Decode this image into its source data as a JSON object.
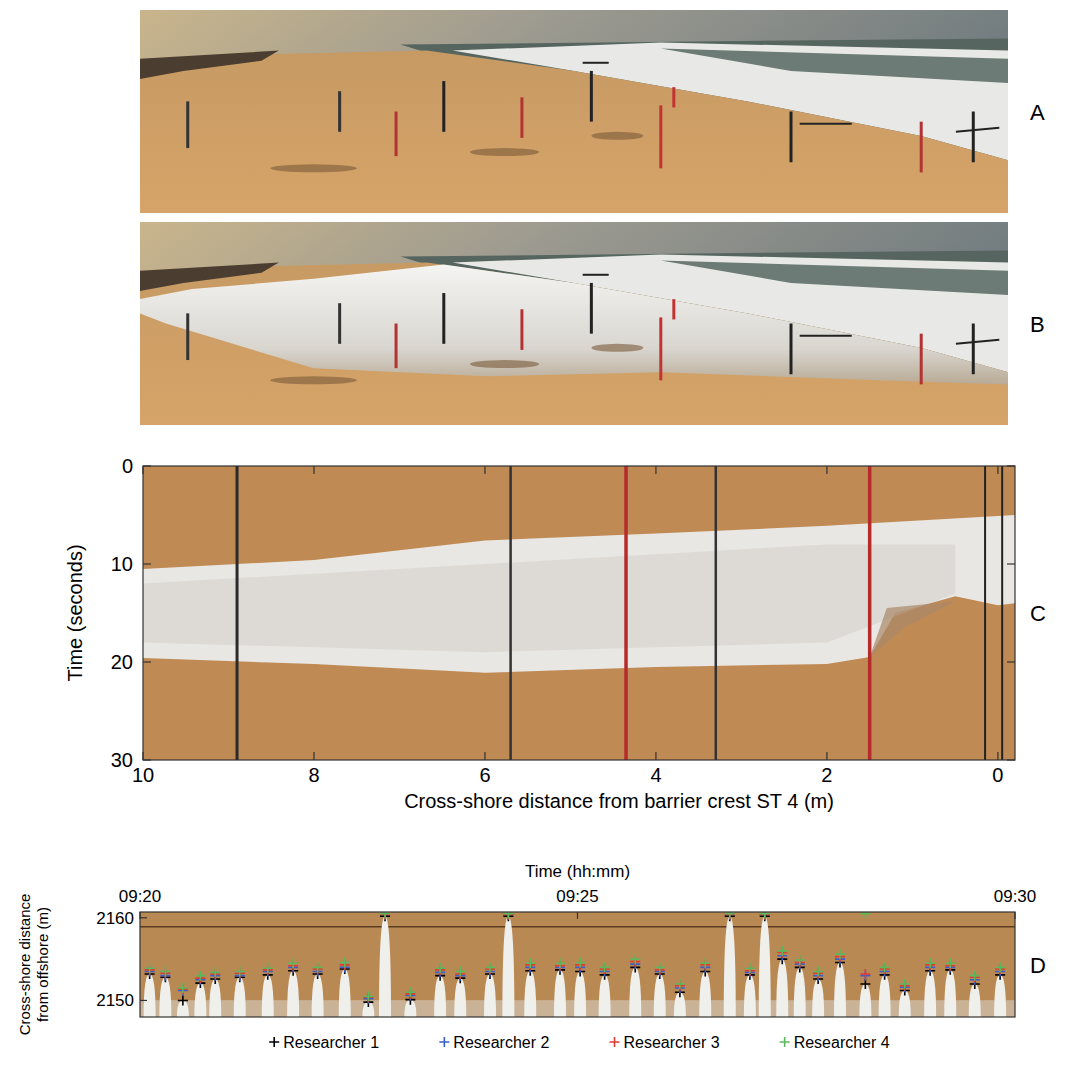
{
  "photos": [
    {
      "label": "A"
    },
    {
      "label": "B"
    }
  ],
  "chart_data": [
    {
      "type": "image",
      "panel_label": "C",
      "x_label": "Cross-shore distance from barrier crest ST 4 (m)",
      "y_label": "Time (seconds)",
      "xlim": [
        10,
        -0.2
      ],
      "xticks": [
        10,
        8,
        6,
        4,
        2,
        0
      ],
      "ylim": [
        30,
        0
      ],
      "yticks": [
        0,
        10,
        20,
        30
      ]
    },
    {
      "type": "scatter",
      "panel_label": "D",
      "x_label": "Time (hh:mm)",
      "y_label": "Cross-shore distance from offshore (m)",
      "marker": "plus",
      "legend": "bottom",
      "xlim": [
        560,
        570
      ],
      "xticks": [
        {
          "value": 560,
          "label": "09:20"
        },
        {
          "value": 565,
          "label": "09:25"
        },
        {
          "value": 570,
          "label": "09:30"
        }
      ],
      "ylim": [
        2148,
        2160.7
      ],
      "yticks": [
        2150,
        2160
      ],
      "x": [
        560.11,
        560.29,
        560.49,
        560.69,
        560.86,
        561.14,
        561.46,
        561.75,
        562.03,
        562.34,
        562.61,
        562.8,
        563.09,
        563.43,
        563.66,
        564.0,
        564.21,
        564.46,
        564.8,
        565.03,
        565.31,
        565.66,
        565.94,
        566.17,
        566.46,
        566.74,
        566.97,
        567.14,
        567.34,
        567.54,
        567.75,
        568.0,
        568.29,
        568.51,
        568.74,
        569.03,
        569.26,
        569.54,
        569.83
      ],
      "series": [
        {
          "name": "Researcher 1",
          "color": "#000000",
          "values": [
            2153.2,
            2152.8,
            2150.0,
            2152.1,
            2152.6,
            2152.8,
            2153.1,
            2153.6,
            2153.2,
            2153.8,
            2149.8,
            2160.2,
            2150.1,
            2153.0,
            2152.7,
            2153.2,
            2160.2,
            2153.6,
            2153.7,
            2153.5,
            2153.1,
            2154.0,
            2153.2,
            2151.0,
            2153.5,
            2160.2,
            2153.1,
            2160.2,
            2155.0,
            2154.0,
            2152.6,
            2154.6,
            2152.0,
            2153.1,
            2151.2,
            2153.6,
            2153.7,
            2152.0,
            2153.1
          ]
        },
        {
          "name": "Researcher 2",
          "color": "#3a5fcd",
          "values": [
            2153.5,
            2153.0,
            2151.2,
            2152.5,
            2153.0,
            2153.0,
            2153.5,
            2154.0,
            2153.5,
            2154.0,
            2150.2,
            2160.4,
            2150.6,
            2153.4,
            2153.0,
            2153.5,
            2160.4,
            2154.0,
            2154.0,
            2154.0,
            2153.5,
            2154.4,
            2153.5,
            2151.5,
            2154.0,
            2160.4,
            2153.4,
            2160.4,
            2155.4,
            2154.4,
            2153.0,
            2155.0,
            2153.0,
            2153.5,
            2151.6,
            2154.0,
            2154.0,
            2152.5,
            2153.5
          ]
        },
        {
          "name": "Researcher 3",
          "color": "#e03c31",
          "values": [
            2153.7,
            2153.3,
            2151.4,
            2152.7,
            2153.2,
            2153.3,
            2153.7,
            2154.2,
            2153.8,
            2154.3,
            2150.4,
            2160.4,
            2150.8,
            2153.7,
            2153.2,
            2153.8,
            2160.4,
            2154.3,
            2154.2,
            2154.3,
            2153.8,
            2154.7,
            2153.7,
            2151.8,
            2154.3,
            2160.4,
            2153.6,
            2160.4,
            2155.8,
            2154.6,
            2153.3,
            2155.3,
            2153.2,
            2153.8,
            2151.8,
            2154.3,
            2154.2,
            2152.8,
            2153.8
          ]
        },
        {
          "name": "Researcher 4",
          "color": "#5cb85c",
          "values": [
            2153.9,
            2153.5,
            2151.5,
            2153.0,
            2153.4,
            2153.5,
            2153.9,
            2154.5,
            2154.0,
            2154.6,
            2150.5,
            2160.5,
            2151.0,
            2153.9,
            2153.5,
            2154.0,
            2160.5,
            2154.5,
            2154.5,
            2154.6,
            2154.0,
            2155.0,
            2154.0,
            2152.0,
            2154.5,
            2160.5,
            2153.9,
            2160.5,
            2156.0,
            2154.9,
            2153.5,
            2155.6,
            2160.5,
            2154.0,
            2152.0,
            2154.5,
            2154.5,
            2153.0,
            2154.0
          ]
        }
      ]
    }
  ]
}
